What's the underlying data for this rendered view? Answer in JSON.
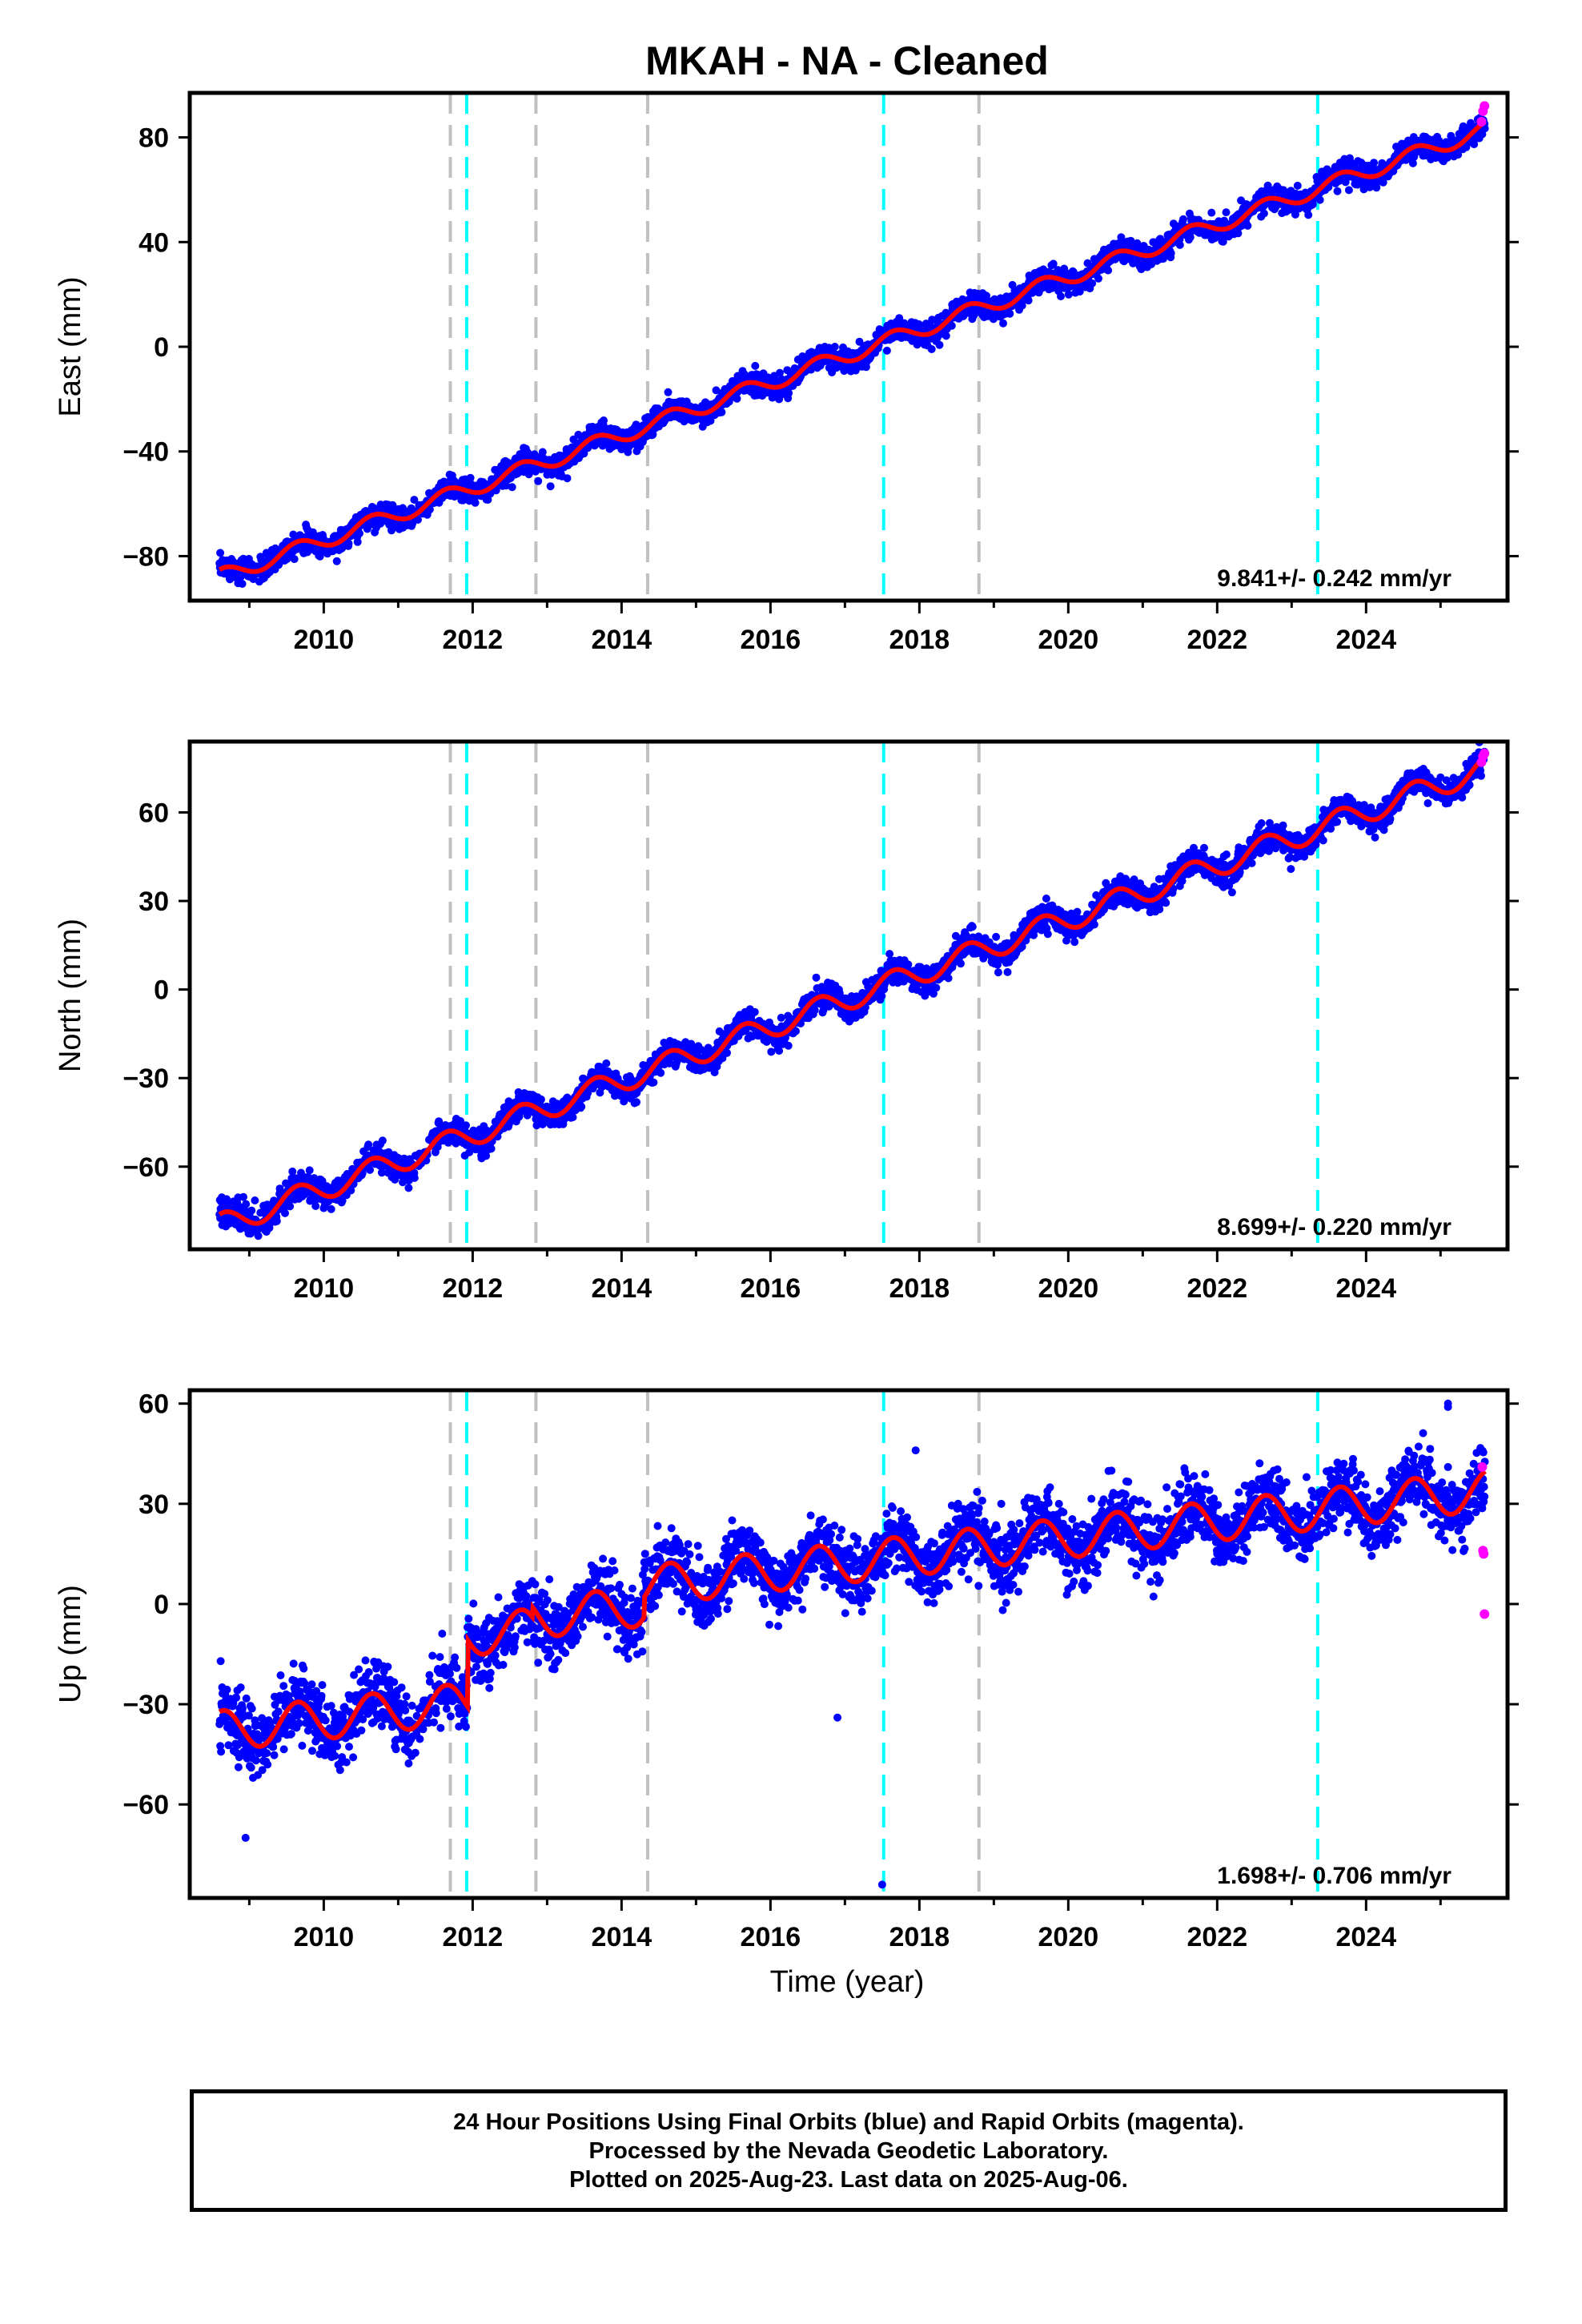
{
  "title": "MKAH  - NA - Cleaned",
  "xlabel": "Time (year)",
  "footer": {
    "line1": "24 Hour Positions Using Final Orbits (blue) and Rapid Orbits (magenta).",
    "line2": "Processed by the Nevada Geodetic Laboratory.",
    "line3": "Plotted on 2025-Aug-23. Last data on 2025-Aug-06."
  },
  "colors": {
    "final_orbits": "#0000ff",
    "rapid_orbits": "#ff00ff",
    "model_fit": "#ff0000",
    "equipment_change_line": "#c0c0c0",
    "earthquake_line": "#00ffff"
  },
  "chart_data": [
    {
      "type": "scatter",
      "component": "east",
      "ylabel": "East (mm)",
      "rate_label": "9.841+/- 0.242 mm/yr",
      "xlim": [
        2008.2,
        2025.9
      ],
      "ylim": [
        -97,
        97
      ],
      "xticks": [
        2010,
        2012,
        2014,
        2016,
        2018,
        2020,
        2022,
        2024
      ],
      "yticks": [
        -80,
        -40,
        0,
        40,
        80
      ],
      "grid": false,
      "trend": {
        "t0": 2008.6,
        "y0": -88,
        "t1": 2025.6,
        "y1": 83
      },
      "seasonal_amplitude": 3,
      "offsets": [],
      "scatter_sd": 2.2,
      "outliers": [],
      "rapid_points": [
        [
          2025.55,
          86
        ],
        [
          2025.57,
          90
        ],
        [
          2025.59,
          92
        ]
      ],
      "series": [
        {
          "name": "Final Orbits (blue)",
          "color": "#0000ff"
        },
        {
          "name": "Rapid Orbits (magenta)",
          "color": "#ff00ff"
        }
      ]
    },
    {
      "type": "scatter",
      "component": "north",
      "ylabel": "North (mm)",
      "rate_label": "8.699+/- 0.220 mm/yr",
      "xlim": [
        2008.2,
        2025.9
      ],
      "ylim": [
        -88,
        84
      ],
      "xticks": [
        2010,
        2012,
        2014,
        2016,
        2018,
        2020,
        2022,
        2024
      ],
      "yticks": [
        -60,
        -30,
        0,
        30,
        60
      ],
      "grid": false,
      "trend": {
        "t0": 2008.6,
        "y0": -80,
        "t1": 2025.6,
        "y1": 75
      },
      "seasonal_amplitude": 4,
      "offsets": [],
      "scatter_sd": 2.2,
      "outliers": [],
      "rapid_points": [
        [
          2025.55,
          77
        ],
        [
          2025.57,
          79
        ],
        [
          2025.59,
          80
        ]
      ],
      "series": [
        {
          "name": "Final Orbits (blue)",
          "color": "#0000ff"
        },
        {
          "name": "Rapid Orbits (magenta)",
          "color": "#ff00ff"
        }
      ]
    },
    {
      "type": "scatter",
      "component": "up",
      "ylabel": "Up (mm)",
      "rate_label": "1.698+/- 0.706 mm/yr",
      "xlim": [
        2008.2,
        2025.9
      ],
      "ylim": [
        -88,
        64
      ],
      "xticks": [
        2010,
        2012,
        2014,
        2016,
        2018,
        2020,
        2022,
        2024
      ],
      "yticks": [
        -60,
        -30,
        0,
        30,
        60
      ],
      "grid": false,
      "trend": {
        "t0": 2008.6,
        "y0": -38,
        "t1": 2025.6,
        "y1": 5
      },
      "seasonal_amplitude": 6,
      "offsets": [
        {
          "t": 2011.93,
          "dy": 20
        },
        {
          "t": 2012.8,
          "dy": 3
        },
        {
          "t": 2014.3,
          "dy": 6
        }
      ],
      "scatter_sd": 5,
      "outliers": [
        [
          2008.95,
          -70
        ],
        [
          2016.9,
          -34
        ],
        [
          2017.5,
          -84
        ],
        [
          2017.95,
          46
        ],
        [
          2019.1,
          30
        ],
        [
          2023.2,
          38
        ],
        [
          2024.8,
          30
        ],
        [
          2025.1,
          60
        ],
        [
          2025.1,
          59
        ],
        [
          2025.1,
          41
        ]
      ],
      "rapid_points": [
        [
          2025.56,
          41
        ],
        [
          2025.57,
          16
        ],
        [
          2025.58,
          15
        ],
        [
          2025.59,
          -3
        ]
      ],
      "series": [
        {
          "name": "Final Orbits (blue)",
          "color": "#0000ff"
        },
        {
          "name": "Rapid Orbits (magenta)",
          "color": "#ff00ff"
        }
      ]
    }
  ],
  "event_lines": {
    "equipment_changes": [
      2011.7,
      2012.85,
      2014.35,
      2018.8
    ],
    "earthquakes": [
      2011.92,
      2017.52,
      2023.35
    ]
  }
}
